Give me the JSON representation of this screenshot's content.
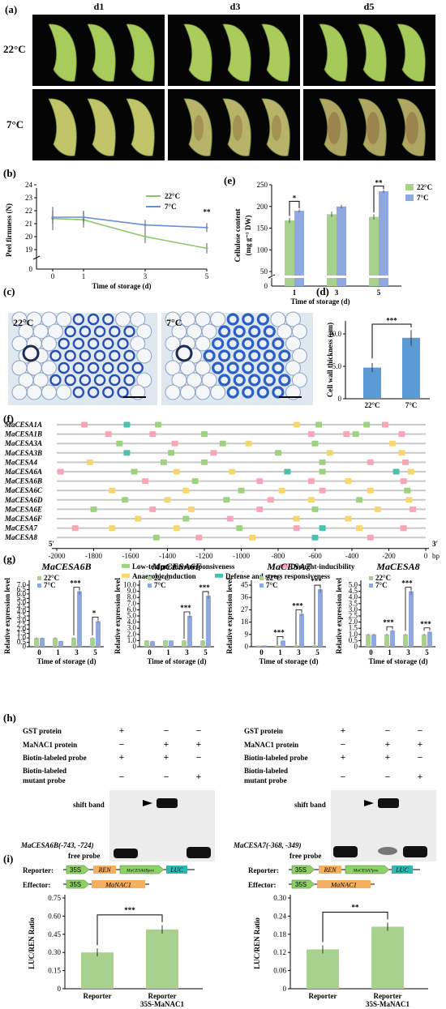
{
  "panel_labels": {
    "a": "(a)",
    "b": "(b)",
    "c": "(c)",
    "d": "(d)",
    "e": "(e)",
    "f": "(f)",
    "g": "(g)",
    "h": "(h)",
    "i": "(i)"
  },
  "panel_a": {
    "columns": [
      "d1",
      "d3",
      "d5"
    ],
    "rows": [
      "22°C",
      "7°C"
    ],
    "colors": {
      "green": "#9fc552",
      "yellow_green": "#c9c766",
      "brown": "#8a6a3a"
    }
  },
  "panel_b": {
    "ylabel": "Peel firmness (N)",
    "xlabel": "Time of storage (d)",
    "sig": "**",
    "legend": [
      "22°C",
      "7°C"
    ]
  },
  "panel_e": {
    "ylabel_1": "Cellulose content",
    "ylabel_2": "(mg g",
    "ylabel_3": "DW)",
    "xlabel": "Time of storage (d)",
    "sig": [
      "*",
      "**"
    ],
    "legend": [
      "22°C",
      "7°C"
    ]
  },
  "panel_c": {
    "left": "22°C",
    "right": "7°C"
  },
  "panel_d": {
    "ylabel": "Cell wall thickness (μm)",
    "sig": "***"
  },
  "panel_f": {
    "genes": [
      "MaCESA1A",
      "MaCESA1B",
      "MaCESA3A",
      "MaCESA3B",
      "MaCESA4",
      "MaCESA6A",
      "MaCESA6B",
      "MaCESA6C",
      "MaCESA6D",
      "MaCESA6E",
      "MaCESA6F",
      "MaCESA7",
      "MaCESA8"
    ],
    "axis_start": "5'",
    "axis_end": "3'",
    "unit": "bp",
    "legend": [
      "Low-temperature responsiveness",
      "Drought-inducibility",
      "Anaerobic induction",
      "Defense and stress responsiveness"
    ],
    "legend_colors": [
      "#9ed27e",
      "#f7a6b8",
      "#f5d76e",
      "#4dbfae"
    ]
  },
  "panel_g": {
    "ylabel": "Relative expression level",
    "xlabel": "Time of storage (d)",
    "legend": [
      "22°C",
      "7°C"
    ]
  },
  "panel_h": {
    "rows": [
      "GST protein",
      "MaNAC1 protein",
      "Biotin-labeled probe",
      "Biotin-labeled",
      "mutant probe"
    ],
    "left_signs": [
      [
        "+",
        "−",
        "−"
      ],
      [
        "−",
        "+",
        "+"
      ],
      [
        "+",
        "+",
        "−"
      ],
      [
        "−",
        "−",
        "+"
      ]
    ],
    "shift": "shift band",
    "free": "free probe",
    "left_probe": "MaCESA6B(-743, -724)",
    "right_probe": "MaCESA7(-368, -349)"
  },
  "panel_i": {
    "reporter": "Reporter:",
    "effector": "Effector:",
    "p35s": "35S",
    "ren": "REN",
    "luc": "LUC",
    "nac": "MaNAC1",
    "left_promoter": "MaCESA6Bpro",
    "right_promoter": "MaCESA7pro",
    "ylabel": "LUC/REN Ratio",
    "cat1": "Reporter",
    "cat2a": "Reporter",
    "cat2b": "35S-MaNAC1",
    "left_sig": "***",
    "right_sig": "**"
  },
  "chart_data": [
    {
      "type": "line",
      "id": "b",
      "title": "",
      "xlabel": "Time of storage (d)",
      "ylabel": "Peel firmness (N)",
      "x": [
        0,
        1,
        3,
        5
      ],
      "ylim": [
        18,
        24
      ],
      "series": [
        {
          "name": "22°C",
          "values": [
            21.4,
            21.3,
            20.0,
            19.1
          ],
          "color": "#8cc665"
        },
        {
          "name": "7°C",
          "values": [
            21.5,
            21.5,
            20.9,
            20.7
          ],
          "color": "#6b8fd6"
        }
      ]
    },
    {
      "type": "bar",
      "id": "e",
      "xlabel": "Time of storage (d)",
      "ylabel": "Cellulose content (mg g-1 DW)",
      "categories": [
        "1",
        "3",
        "5"
      ],
      "ylim": [
        0,
        250
      ],
      "series": [
        {
          "name": "22°C",
          "values": [
            168,
            182,
            176
          ],
          "color": "#a9d18e"
        },
        {
          "name": "7°C",
          "values": [
            190,
            200,
            235
          ],
          "color": "#8fa9e0"
        }
      ]
    },
    {
      "type": "bar",
      "id": "d",
      "categories": [
        "22°C",
        "7°C"
      ],
      "values": [
        4.8,
        9.4
      ],
      "ylabel": "Cell wall thickness (μm)",
      "ylim": [
        0,
        12
      ],
      "color": "#5b9bd5"
    },
    {
      "type": "bar",
      "id": "g1",
      "title": "MaCESA6B",
      "categories": [
        "0",
        "1",
        "3",
        "5"
      ],
      "ylim": [
        0,
        7
      ],
      "yticks": [
        "0",
        "0.5",
        "1.0",
        "1.5",
        "2.0",
        "2.5",
        "3.0",
        "3.5",
        "4.0",
        "4.5",
        "5.0",
        "5.5",
        "6.0",
        "6.5",
        "7.0"
      ],
      "series": [
        {
          "name": "22°C",
          "values": [
            1.0,
            1.0,
            1.0,
            1.0
          ]
        },
        {
          "name": "7°C",
          "values": [
            1.0,
            0.65,
            6.3,
            2.9
          ]
        }
      ],
      "sig": [
        "",
        "",
        "***",
        "*"
      ]
    },
    {
      "type": "bar",
      "id": "g2",
      "title": "MaCESA6F",
      "categories": [
        "0",
        "1",
        "3",
        "5"
      ],
      "ylim": [
        0,
        10
      ],
      "yticks": [
        "0",
        "1.0",
        "2.0",
        "3.0",
        "4.0",
        "5.0",
        "6.0",
        "7.0",
        "8.0",
        "9.0",
        "10.0"
      ],
      "series": [
        {
          "name": "22°C",
          "values": [
            1.0,
            1.0,
            1.0,
            1.0
          ]
        },
        {
          "name": "7°C",
          "values": [
            0.9,
            1.0,
            5.0,
            8.3
          ]
        }
      ],
      "sig": [
        "",
        "",
        "***",
        "***"
      ]
    },
    {
      "type": "bar",
      "id": "g3",
      "title": "MaCESA7",
      "categories": [
        "0",
        "1",
        "3",
        "5"
      ],
      "ylim": [
        0,
        45
      ],
      "yticks": [
        "0",
        "9",
        "18",
        "27",
        "36",
        "45"
      ],
      "series": [
        {
          "name": "22°C",
          "values": [
            1.0,
            1.0,
            1.0,
            1.0
          ]
        },
        {
          "name": "7°C",
          "values": [
            1.0,
            4.5,
            24,
            42
          ]
        }
      ],
      "sig": [
        "",
        "***",
        "***",
        "***"
      ]
    },
    {
      "type": "bar",
      "id": "g4",
      "title": "MaCESA8",
      "categories": [
        "0",
        "1",
        "3",
        "5"
      ],
      "ylim": [
        0,
        5
      ],
      "yticks": [
        "0",
        "0.5",
        "1.0",
        "1.5",
        "2.0",
        "2.5",
        "3.0",
        "3.5",
        "4.0",
        "4.5",
        "5.0"
      ],
      "series": [
        {
          "name": "22°C",
          "values": [
            1.0,
            1.0,
            1.0,
            1.0
          ]
        },
        {
          "name": "7°C",
          "values": [
            1.0,
            1.3,
            4.5,
            1.2
          ]
        }
      ],
      "sig": [
        "",
        "***",
        "***",
        "***"
      ]
    },
    {
      "type": "bar",
      "id": "i1",
      "categories": [
        "Reporter",
        "Reporter 35S-MaNAC1"
      ],
      "values": [
        0.3,
        0.49
      ],
      "ylim": [
        0,
        0.75
      ],
      "yticks": [
        "0",
        "0.15",
        "0.30",
        "0.45",
        "0.60",
        "0.75"
      ],
      "color": "#a9d18e"
    },
    {
      "type": "bar",
      "id": "i2",
      "categories": [
        "Reporter",
        "Reporter 35S-MaNAC1"
      ],
      "values": [
        0.13,
        0.205
      ],
      "ylim": [
        0,
        0.3
      ],
      "yticks": [
        "0",
        "0.06",
        "0.12",
        "0.18",
        "0.24",
        "0.30"
      ],
      "color": "#a9d18e"
    }
  ]
}
